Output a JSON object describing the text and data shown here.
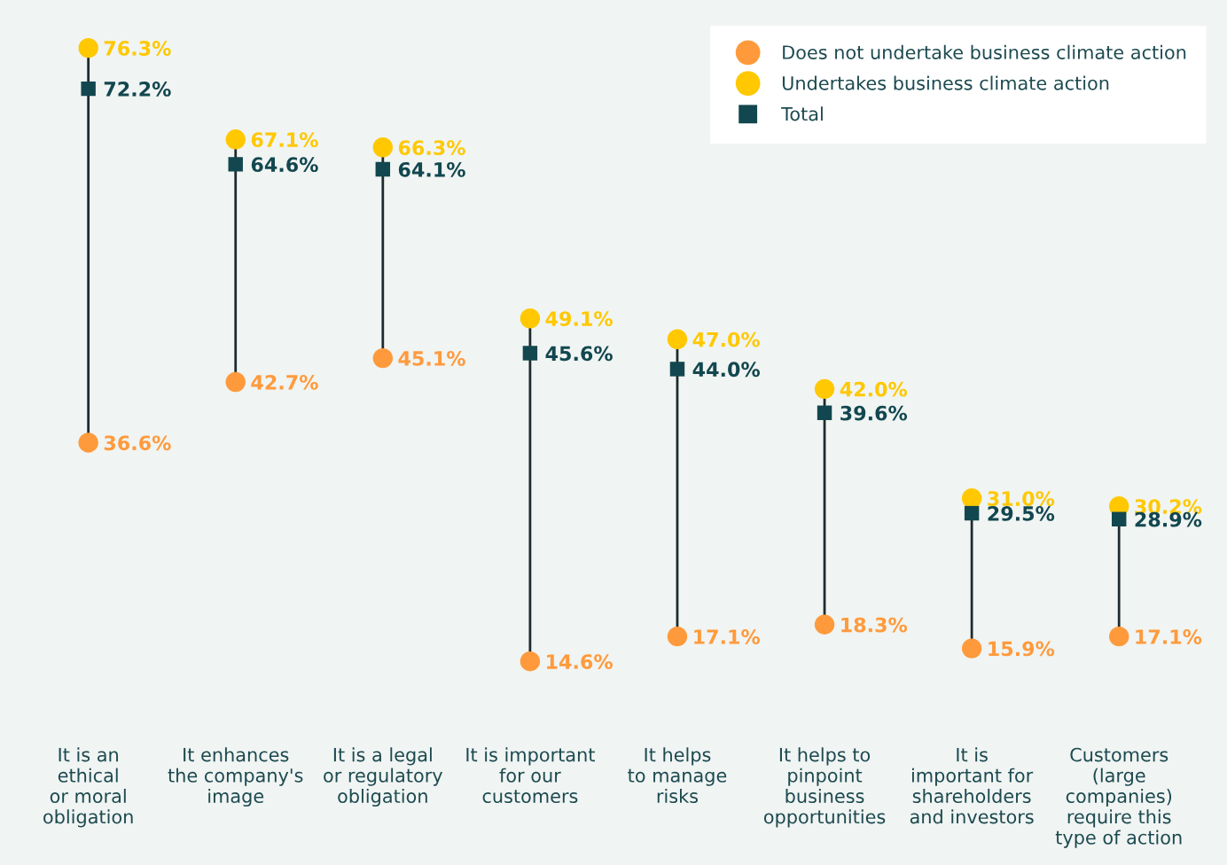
{
  "chart_data": {
    "type": "scatter",
    "categories": [
      "It is an\nethical\nor moral\nobligation",
      "It enhances\nthe company's\nimage",
      "It is a legal\nor regulatory\nobligation",
      "It is important\nfor our\ncustomers",
      "It helps\nto manage\nrisks",
      "It helps to\npinpoint\nbusiness\nopportunities",
      "It is\nimportant for\nshareholders\nand investors",
      "Customers\n(large\ncompanies)\nrequire this\ntype of action"
    ],
    "series": [
      {
        "name": "Does not undertake business climate action",
        "color": "#ff9a3c",
        "marker": "circle",
        "values": [
          36.6,
          42.7,
          45.1,
          14.6,
          17.1,
          18.3,
          15.9,
          17.1
        ],
        "value_labels": [
          "36.6%",
          "42.7%",
          "45.1%",
          "14.6%",
          "17.1%",
          "18.3%",
          "15.9%",
          "17.1%"
        ]
      },
      {
        "name": "Undertakes business climate action",
        "color": "#ffc800",
        "marker": "circle",
        "values": [
          76.3,
          67.1,
          66.3,
          49.1,
          47.0,
          42.0,
          31.0,
          30.2
        ],
        "value_labels": [
          "76.3%",
          "67.1%",
          "66.3%",
          "49.1%",
          "47.0%",
          "42.0%",
          "31.0%",
          "30.2%"
        ]
      },
      {
        "name": "Total",
        "color": "#12474f",
        "marker": "square",
        "values": [
          72.2,
          64.6,
          64.1,
          45.6,
          44.0,
          39.6,
          29.5,
          28.9
        ],
        "value_labels": [
          "72.2%",
          "64.6%",
          "64.1%",
          "45.6%",
          "44.0%",
          "39.6%",
          "29.5%",
          "28.9%"
        ]
      }
    ],
    "legend": "top right",
    "grid": false
  }
}
